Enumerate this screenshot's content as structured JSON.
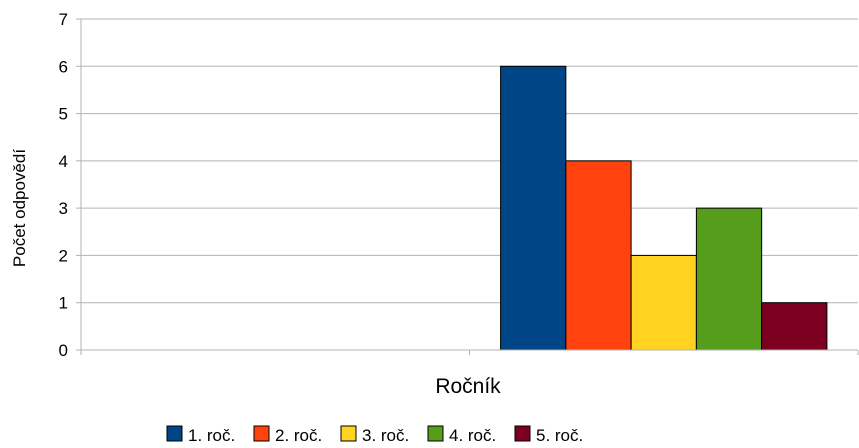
{
  "chart_data": {
    "type": "bar",
    "xlabel": "Ročník",
    "ylabel": "Počet odpovědí",
    "ylim": [
      0,
      7
    ],
    "yticks": [
      "0",
      "1",
      "2",
      "3",
      "4",
      "5",
      "6",
      "7"
    ],
    "grid": true,
    "legend_placement": "bottom",
    "groups": 2,
    "series": [
      {
        "name": "1. roč.",
        "color": "#004586",
        "values": [
          6
        ]
      },
      {
        "name": "2. roč.",
        "color": "#ff420e",
        "values": [
          4
        ]
      },
      {
        "name": "3. roč.",
        "color": "#ffd320",
        "values": [
          2
        ]
      },
      {
        "name": "4. roč.",
        "color": "#579d1c",
        "values": [
          3
        ]
      },
      {
        "name": "5. roč.",
        "color": "#7e0021",
        "values": [
          1
        ]
      }
    ]
  }
}
